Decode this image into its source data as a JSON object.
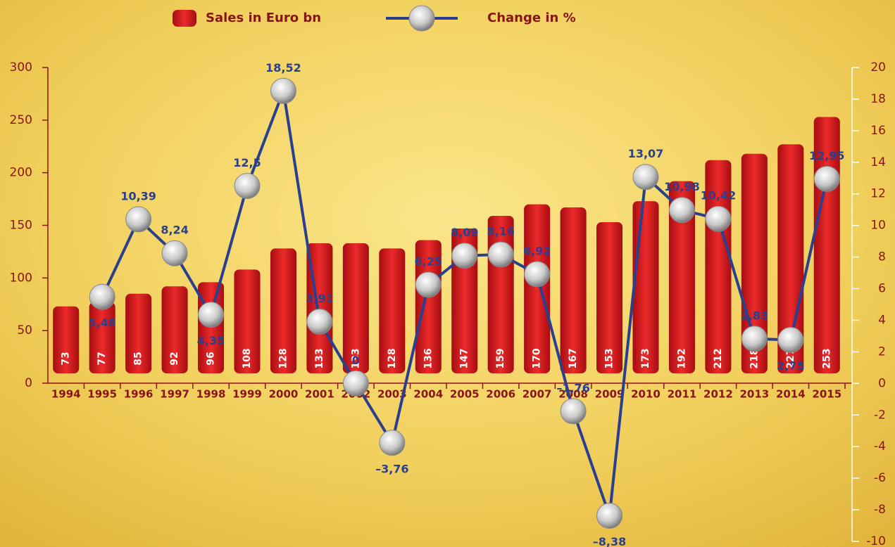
{
  "chart_data": {
    "type": "bar_line",
    "categories": [
      "1994",
      "1995",
      "1996",
      "1997",
      "1998",
      "1999",
      "2000",
      "2001",
      "2002",
      "2003",
      "2004",
      "2005",
      "2006",
      "2007",
      "2008",
      "2009",
      "2010",
      "2011",
      "2012",
      "2013",
      "2014",
      "2015"
    ],
    "series": [
      {
        "name": "Sales in Euro bn",
        "color": "#d8141c",
        "type": "bar",
        "values": [
          73,
          77,
          85,
          92,
          96,
          108,
          128,
          133,
          133,
          128,
          136,
          147,
          159,
          170,
          167,
          153,
          173,
          192,
          212,
          218,
          227,
          253
        ]
      },
      {
        "name": "Change in %",
        "color": "#2b3f8f",
        "type": "line",
        "axis": "y2",
        "values": [
          null,
          5.48,
          10.39,
          8.24,
          4.35,
          12.5,
          18.52,
          3.91,
          0,
          -3.76,
          6.25,
          8.09,
          8.16,
          6.92,
          -1.76,
          -8.38,
          13.07,
          10.98,
          10.42,
          2.83,
          2.75,
          12.95
        ],
        "value_labels": [
          null,
          "5,48",
          "10,39",
          "8,24",
          "4,35",
          "12,5",
          "18,52",
          "3,91",
          "0",
          "–3,76",
          "6,25",
          "8,09",
          "8,16",
          "6,92",
          "–1,76",
          "–8,38",
          "13,07",
          "10,98",
          "10,42",
          "2,83",
          "2,75",
          "12,95"
        ]
      }
    ],
    "ylim": [
      0,
      300
    ],
    "yticks": [
      0,
      50,
      100,
      150,
      200,
      250,
      300
    ],
    "y2lim": [
      -10,
      20
    ],
    "y2ticks": [
      -10,
      -8,
      -6,
      -4,
      -2,
      0,
      2,
      4,
      6,
      8,
      10,
      12,
      14,
      16,
      18,
      20
    ]
  }
}
